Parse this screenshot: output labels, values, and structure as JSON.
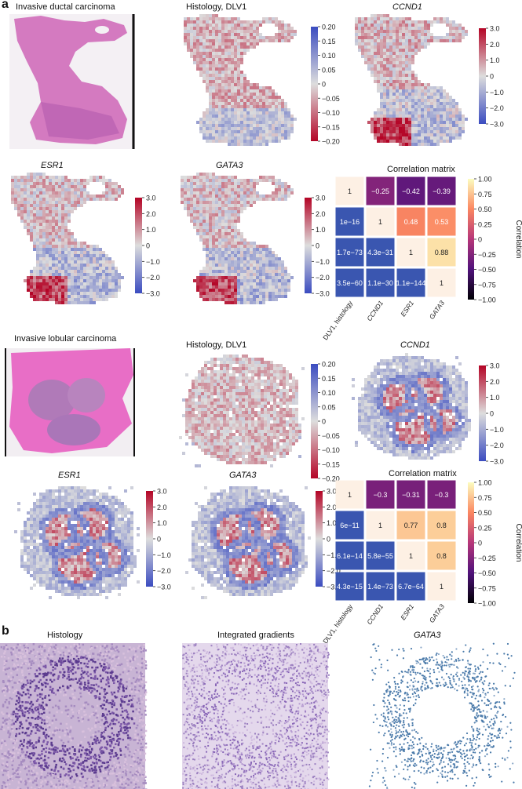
{
  "panel_a": {
    "label": "a",
    "idc": {
      "he_title": "Invasive ductal carcinoma",
      "maps": [
        {
          "id": "idc-dlv1",
          "title": "Histology, DLV1",
          "italic": false,
          "scale": "dlv",
          "style": "idc"
        },
        {
          "id": "idc-ccnd1",
          "title": "CCND1",
          "italic": true,
          "scale": "expr",
          "style": "idc"
        },
        {
          "id": "idc-esr1",
          "title": "ESR1",
          "italic": true,
          "scale": "expr",
          "style": "idc"
        },
        {
          "id": "idc-gata3",
          "title": "GATA3",
          "italic": true,
          "scale": "expr",
          "style": "idc"
        }
      ],
      "matrix": {
        "title": "Correlation matrix",
        "cells": [
          [
            "1",
            "−0.25",
            "−0.42",
            "−0.39"
          ],
          [
            "1e−16",
            "1",
            "0.48",
            "0.53"
          ],
          [
            "1.7e−73",
            "4.3e−31",
            "1",
            "0.88"
          ],
          [
            "3.5e−60",
            "1.1e−30",
            "1.1e−144",
            "1"
          ]
        ],
        "values": [
          [
            1,
            -0.25,
            -0.42,
            -0.39
          ],
          [
            null,
            1,
            0.48,
            0.53
          ],
          [
            null,
            null,
            1,
            0.88
          ],
          [
            null,
            null,
            null,
            1
          ]
        ]
      }
    },
    "ilc": {
      "he_title": "Invasive lobular carcinoma",
      "maps": [
        {
          "id": "ilc-dlv1",
          "title": "Histology, DLV1",
          "italic": false,
          "scale": "dlv",
          "style": "ilc"
        },
        {
          "id": "ilc-ccnd1",
          "title": "CCND1",
          "italic": true,
          "scale": "expr",
          "style": "ilc"
        },
        {
          "id": "ilc-esr1",
          "title": "ESR1",
          "italic": true,
          "scale": "expr",
          "style": "ilc"
        },
        {
          "id": "ilc-gata3",
          "title": "GATA3",
          "italic": true,
          "scale": "expr",
          "style": "ilc"
        }
      ],
      "matrix": {
        "title": "Correlation matrix",
        "cells": [
          [
            "1",
            "−0.3",
            "−0.31",
            "−0.3"
          ],
          [
            "6e−11",
            "1",
            "0.77",
            "0.8"
          ],
          [
            "6.1e−14",
            "5.8e−55",
            "1",
            "0.8"
          ],
          [
            "4.3e−15",
            "1.4e−73",
            "6.7e−64",
            "1"
          ]
        ],
        "values": [
          [
            1,
            -0.3,
            -0.31,
            -0.3
          ],
          [
            null,
            1,
            0.77,
            0.8
          ],
          [
            null,
            null,
            1,
            0.8
          ],
          [
            null,
            null,
            null,
            1
          ]
        ]
      }
    },
    "scales": {
      "dlv": [
        "0.20",
        "0.15",
        "0.10",
        "0.05",
        "0",
        "−0.05",
        "−0.10",
        "−0.15",
        "−0.20"
      ],
      "expr": [
        "3.0",
        "2.0",
        "1.0",
        "0",
        "−1.0",
        "−2.0",
        "−3.0"
      ],
      "corr": [
        "1.00",
        "0.75",
        "0.50",
        "0.25",
        "0",
        "−0.25",
        "−0.50",
        "−0.75",
        "−1.00"
      ],
      "corr_label": "Correlation"
    },
    "matrix_axis_labels": [
      "DLV1, histology",
      "CCND1",
      "ESR1",
      "GATA3"
    ]
  },
  "panel_b": {
    "label": "b",
    "titles": [
      "Histology",
      "Integrated gradients",
      "GATA3"
    ]
  },
  "colors": {
    "red": "#c62828",
    "blue": "#2f4fa8",
    "he_pink": "#d46ab8",
    "he_purple": "#7a5aa8"
  }
}
